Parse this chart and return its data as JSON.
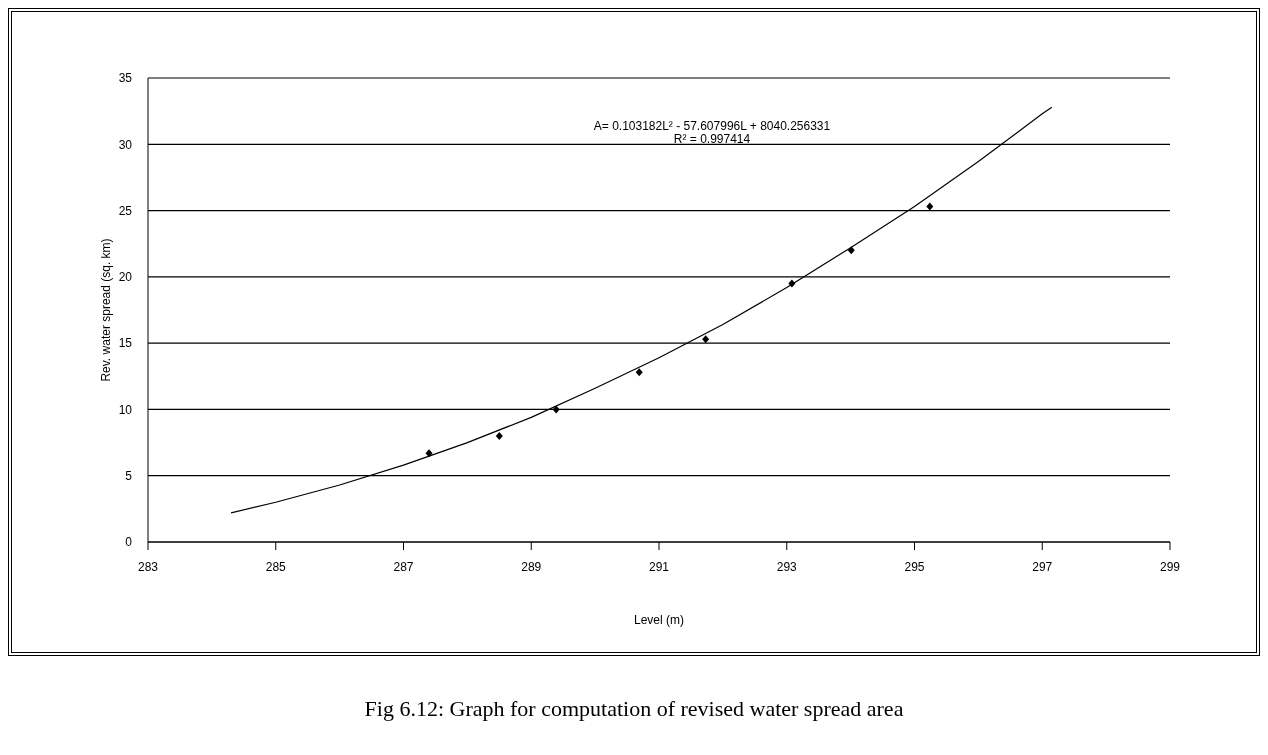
{
  "chart_data": {
    "type": "scatter",
    "xlabel": "Level (m)",
    "ylabel": "Rev. water spread (sq. km)",
    "annotations": [
      "A= 0.103182L² - 57.607996L + 8040.256331",
      "R² = 0.997414",
      "Fig 6.12: Graph for computation of revised water spread area"
    ],
    "x": [
      287.4,
      288.5,
      289.39,
      290.69,
      291.73,
      293.08,
      294.01,
      295.24
    ],
    "values": [
      6.7,
      8.0,
      10.0,
      12.8,
      15.3,
      19.5,
      22.0,
      25.3
    ],
    "color": "#000000",
    "marker": "diamond",
    "series": [
      {
        "type": "line",
        "color": "#000000",
        "line_style": "solid",
        "marker": "none",
        "x": [
          284.3,
          285,
          286,
          287,
          288,
          289,
          290,
          291,
          292,
          293,
          294,
          295,
          296,
          297,
          297.15
        ],
        "values": [
          2.2,
          3.0,
          4.3,
          5.8,
          7.5,
          9.4,
          11.6,
          13.9,
          16.4,
          19.2,
          22.2,
          25.3,
          28.7,
          32.3,
          32.8
        ]
      }
    ],
    "xlim": [
      283,
      299
    ],
    "xticks": [
      283,
      285,
      287,
      289,
      291,
      293,
      295,
      297,
      299
    ],
    "ylim": [
      0,
      35
    ],
    "yticks": [
      0,
      5,
      10,
      15,
      20,
      25,
      30,
      35
    ],
    "grid": "y",
    "legend": false
  }
}
